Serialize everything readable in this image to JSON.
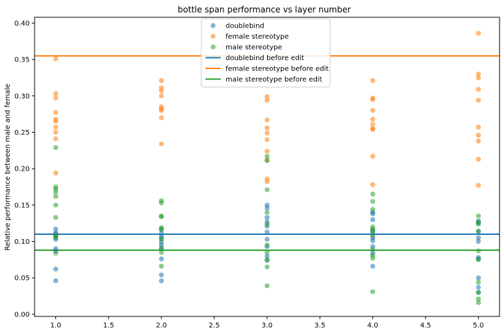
{
  "chart_data": {
    "type": "scatter",
    "title": "bottle span performance vs layer number",
    "xlabel": "",
    "ylabel": "Relative performance between male and female",
    "xlim": [
      0.8,
      5.2
    ],
    "ylim": [
      -0.003,
      0.408
    ],
    "xticks": [
      "1.0",
      "1.5",
      "2.0",
      "2.5",
      "3.0",
      "3.5",
      "4.0",
      "4.5",
      "5.0"
    ],
    "yticks": [
      "0.00",
      "0.05",
      "0.10",
      "0.15",
      "0.20",
      "0.25",
      "0.30",
      "0.35",
      "0.40"
    ],
    "grid": false,
    "legend_position": "top-center",
    "series": [
      {
        "name": "doublebind",
        "kind": "scatter",
        "color": "#1f77b4",
        "points": [
          [
            1,
            0.046
          ],
          [
            1,
            0.062
          ],
          [
            1,
            0.087
          ],
          [
            1,
            0.09
          ],
          [
            1,
            0.103
          ],
          [
            1,
            0.107
          ],
          [
            1,
            0.11
          ],
          [
            1,
            0.112
          ],
          [
            1,
            0.117
          ],
          [
            2,
            0.046
          ],
          [
            2,
            0.054
          ],
          [
            2,
            0.076
          ],
          [
            2,
            0.09
          ],
          [
            2,
            0.095
          ],
          [
            2,
            0.099
          ],
          [
            2,
            0.104
          ],
          [
            2,
            0.107
          ],
          [
            2,
            0.111
          ],
          [
            2,
            0.116
          ],
          [
            3,
            0.074
          ],
          [
            3,
            0.08
          ],
          [
            3,
            0.093
          ],
          [
            3,
            0.103
          ],
          [
            3,
            0.113
          ],
          [
            3,
            0.121
          ],
          [
            3,
            0.127
          ],
          [
            3,
            0.133
          ],
          [
            3,
            0.146
          ],
          [
            3,
            0.15
          ],
          [
            4,
            0.066
          ],
          [
            4,
            0.084
          ],
          [
            4,
            0.093
          ],
          [
            4,
            0.101
          ],
          [
            4,
            0.105
          ],
          [
            4,
            0.111
          ],
          [
            4,
            0.115
          ],
          [
            4,
            0.13
          ],
          [
            4,
            0.138
          ],
          [
            4,
            0.14
          ],
          [
            5,
            0.03
          ],
          [
            5,
            0.037
          ],
          [
            5,
            0.05
          ],
          [
            5,
            0.076
          ],
          [
            5,
            0.078
          ],
          [
            5,
            0.1
          ],
          [
            5,
            0.105
          ],
          [
            5,
            0.114
          ],
          [
            5,
            0.125
          ],
          [
            5,
            0.128
          ]
        ]
      },
      {
        "name": "female stereotype",
        "kind": "scatter",
        "color": "#ff7f0e",
        "points": [
          [
            1,
            0.351
          ],
          [
            1,
            0.303
          ],
          [
            1,
            0.297
          ],
          [
            1,
            0.277
          ],
          [
            1,
            0.268
          ],
          [
            1,
            0.265
          ],
          [
            1,
            0.257
          ],
          [
            1,
            0.25
          ],
          [
            1,
            0.241
          ],
          [
            1,
            0.194
          ],
          [
            2,
            0.321
          ],
          [
            2,
            0.311
          ],
          [
            2,
            0.307
          ],
          [
            2,
            0.3
          ],
          [
            2,
            0.285
          ],
          [
            2,
            0.282
          ],
          [
            2,
            0.28
          ],
          [
            2,
            0.27
          ],
          [
            2,
            0.234
          ],
          [
            3,
            0.299
          ],
          [
            3,
            0.294
          ],
          [
            3,
            0.267
          ],
          [
            3,
            0.256
          ],
          [
            3,
            0.249
          ],
          [
            3,
            0.24
          ],
          [
            3,
            0.224
          ],
          [
            3,
            0.212
          ],
          [
            3,
            0.186
          ],
          [
            3,
            0.182
          ],
          [
            4,
            0.321
          ],
          [
            4,
            0.297
          ],
          [
            4,
            0.295
          ],
          [
            4,
            0.28
          ],
          [
            4,
            0.268
          ],
          [
            4,
            0.261
          ],
          [
            4,
            0.255
          ],
          [
            4,
            0.254
          ],
          [
            4,
            0.217
          ],
          [
            4,
            0.178
          ],
          [
            5,
            0.386
          ],
          [
            5,
            0.33
          ],
          [
            5,
            0.325
          ],
          [
            5,
            0.309
          ],
          [
            5,
            0.294
          ],
          [
            5,
            0.257
          ],
          [
            5,
            0.246
          ],
          [
            5,
            0.238
          ],
          [
            5,
            0.213
          ],
          [
            5,
            0.177
          ]
        ]
      },
      {
        "name": "male stereotype",
        "kind": "scatter",
        "color": "#2ca02c",
        "points": [
          [
            1,
            0.229
          ],
          [
            1,
            0.175
          ],
          [
            1,
            0.172
          ],
          [
            1,
            0.168
          ],
          [
            1,
            0.162
          ],
          [
            1,
            0.15
          ],
          [
            1,
            0.133
          ],
          [
            1,
            0.108
          ],
          [
            1,
            0.105
          ],
          [
            1,
            0.084
          ],
          [
            2,
            0.156
          ],
          [
            2,
            0.153
          ],
          [
            2,
            0.135
          ],
          [
            2,
            0.134
          ],
          [
            2,
            0.119
          ],
          [
            2,
            0.117
          ],
          [
            2,
            0.103
          ],
          [
            2,
            0.091
          ],
          [
            2,
            0.085
          ],
          [
            2,
            0.066
          ],
          [
            3,
            0.217
          ],
          [
            3,
            0.211
          ],
          [
            3,
            0.171
          ],
          [
            3,
            0.14
          ],
          [
            3,
            0.124
          ],
          [
            3,
            0.095
          ],
          [
            3,
            0.085
          ],
          [
            3,
            0.075
          ],
          [
            3,
            0.065
          ],
          [
            3,
            0.039
          ],
          [
            4,
            0.165
          ],
          [
            4,
            0.155
          ],
          [
            4,
            0.144
          ],
          [
            4,
            0.12
          ],
          [
            4,
            0.117
          ],
          [
            4,
            0.114
          ],
          [
            4,
            0.108
          ],
          [
            4,
            0.089
          ],
          [
            4,
            0.081
          ],
          [
            4,
            0.077
          ],
          [
            4,
            0.031
          ],
          [
            5,
            0.135
          ],
          [
            5,
            0.127
          ],
          [
            5,
            0.124
          ],
          [
            5,
            0.114
          ],
          [
            5,
            0.087
          ],
          [
            5,
            0.075
          ],
          [
            5,
            0.044
          ],
          [
            5,
            0.03
          ],
          [
            5,
            0.021
          ],
          [
            5,
            0.016
          ]
        ]
      },
      {
        "name": "doublebind before edit",
        "kind": "hline",
        "color": "#1f77b4",
        "y": 0.11
      },
      {
        "name": "female stereotype before edit",
        "kind": "hline",
        "color": "#ff7f0e",
        "y": 0.355
      },
      {
        "name": "male stereotype before edit",
        "kind": "hline",
        "color": "#2ca02c",
        "y": 0.088
      }
    ]
  }
}
